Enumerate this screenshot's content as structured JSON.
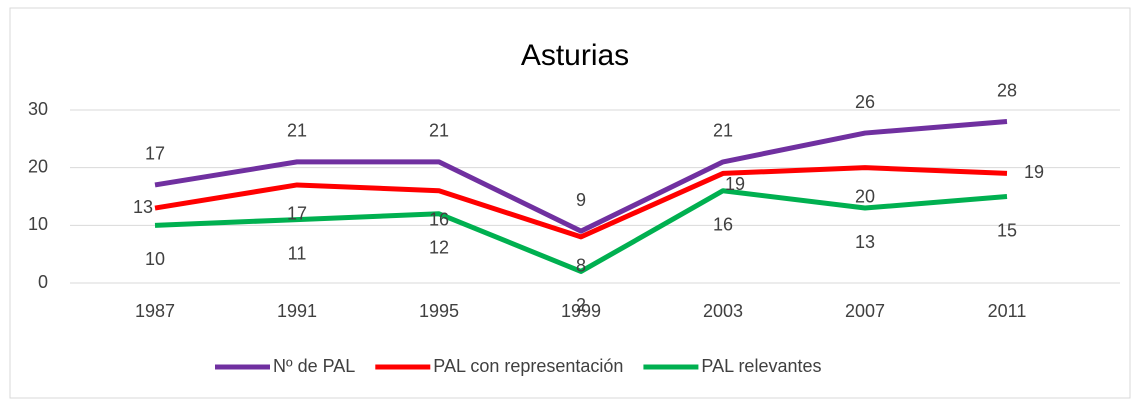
{
  "chart_data": {
    "type": "line",
    "title": "Asturias",
    "categories": [
      "1987",
      "1991",
      "1995",
      "1999",
      "2003",
      "2007",
      "2011"
    ],
    "series": [
      {
        "name": "Nº de PAL",
        "color": "#7030a0",
        "values": [
          17,
          21,
          21,
          9,
          21,
          26,
          28
        ]
      },
      {
        "name": "PAL con representación",
        "color": "#ff0000",
        "values": [
          13,
          17,
          16,
          8,
          19,
          20,
          19
        ]
      },
      {
        "name": "PAL relevantes",
        "color": "#00b050",
        "values": [
          10,
          11,
          12,
          2,
          16,
          13,
          15
        ]
      }
    ],
    "ylim": [
      0,
      30
    ],
    "yticks": [
      0,
      10,
      20,
      30
    ],
    "grid": true,
    "legend": "bottom"
  }
}
